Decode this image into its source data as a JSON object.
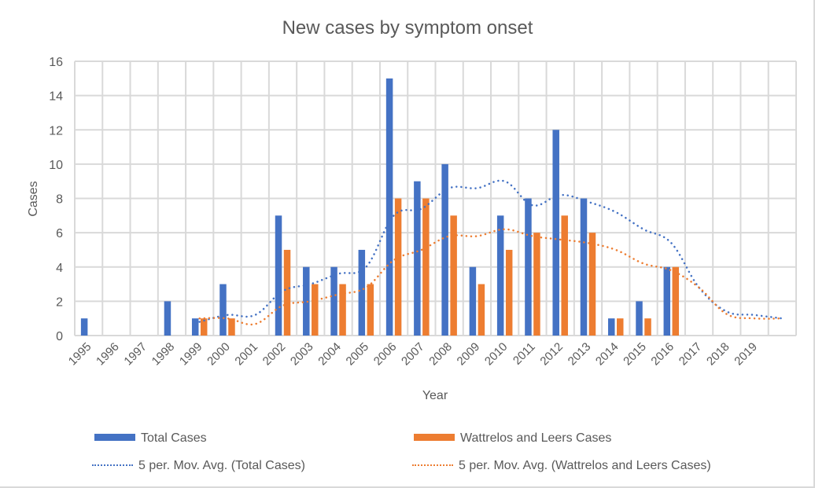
{
  "chart_data": {
    "type": "bar",
    "title": "New cases by symptom onset",
    "xlabel": "Year",
    "ylabel": "Cases",
    "ylim": [
      0,
      16
    ],
    "yticks": [
      "0",
      "2",
      "4",
      "6",
      "8",
      "10",
      "12",
      "14",
      "16"
    ],
    "grid": true,
    "legend_position": "bottom",
    "categories": [
      "1995",
      "1996",
      "1997",
      "1998",
      "1999",
      "2000",
      "2001",
      "2002",
      "2003",
      "2004",
      "2005",
      "2006",
      "2007",
      "2008",
      "2009",
      "2010",
      "2011",
      "2012",
      "2013",
      "2014",
      "2015",
      "2016",
      "2017",
      "2018",
      "2019",
      ""
    ],
    "series": [
      {
        "name": "Total Cases",
        "type": "bar",
        "color": "#4472c4",
        "values": [
          1,
          0,
          0,
          2,
          1,
          3,
          0,
          7,
          4,
          4,
          5,
          15,
          9,
          10,
          4,
          7,
          8,
          12,
          8,
          1,
          2,
          4,
          null,
          null,
          null,
          null
        ]
      },
      {
        "name": "Wattrelos and Leers Cases",
        "type": "bar",
        "color": "#ed7d31",
        "values": [
          null,
          null,
          null,
          null,
          1,
          1,
          0,
          5,
          3,
          3,
          3,
          8,
          8,
          7,
          3,
          5,
          6,
          7,
          6,
          1,
          1,
          4,
          null,
          null,
          null,
          null
        ]
      },
      {
        "name": "5 per. Mov. Avg. (Total Cases)",
        "type": "line",
        "style": "dotted",
        "color": "#4472c4",
        "values": [
          null,
          null,
          null,
          null,
          0.8,
          1.2,
          1.2,
          2.6,
          3.0,
          3.6,
          4.0,
          7.0,
          7.4,
          8.6,
          8.6,
          9.0,
          7.6,
          8.2,
          7.8,
          7.2,
          6.2,
          5.4,
          2.8,
          1.4,
          1.2,
          1.0
        ]
      },
      {
        "name": "5 per. Mov. Avg. (Wattrelos and Leers Cases)",
        "type": "line",
        "style": "dotted",
        "color": "#ed7d31",
        "values": [
          null,
          null,
          null,
          null,
          1.0,
          1.0,
          0.67,
          1.75,
          2.0,
          2.4,
          2.8,
          4.4,
          5.0,
          5.8,
          5.8,
          6.2,
          5.8,
          5.6,
          5.4,
          5.0,
          4.2,
          3.8,
          2.8,
          1.25,
          1.0,
          1.0
        ]
      }
    ]
  },
  "legend": {
    "items": [
      {
        "label": "Total Cases",
        "color": "#4472c4",
        "kind": "bar"
      },
      {
        "label": "Wattrelos and Leers Cases",
        "color": "#ed7d31",
        "kind": "bar"
      },
      {
        "label": "5 per. Mov. Avg. (Total Cases)",
        "color": "#4472c4",
        "kind": "dotted"
      },
      {
        "label": "5 per. Mov. Avg. (Wattrelos and Leers Cases)",
        "color": "#ed7d31",
        "kind": "dotted"
      }
    ]
  },
  "colors": {
    "grid": "#d9d9d9",
    "text": "#595959"
  }
}
